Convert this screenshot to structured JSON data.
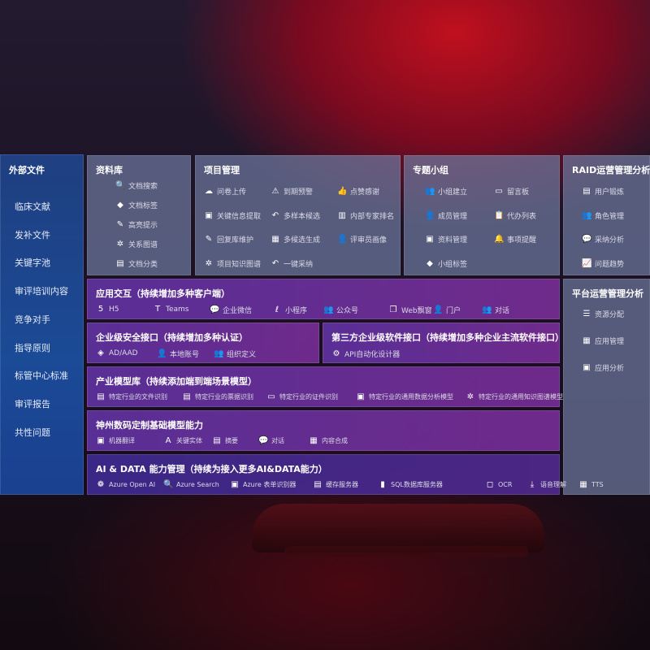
{
  "external": {
    "title": "外部文件",
    "items": [
      "临床文献",
      "发补文件",
      "关键字池",
      "审评培训内容",
      "竞争对手",
      "指导原则",
      "标管中心标准",
      "审评报告",
      "共性问题"
    ]
  },
  "library": {
    "title": "资料库",
    "items": [
      {
        "icon": "document-search-icon",
        "g": "🔍",
        "label": "文档搜索"
      },
      {
        "icon": "tag-icon",
        "g": "◆",
        "label": "文档标签"
      },
      {
        "icon": "highlight-pen-icon",
        "g": "✎",
        "label": "高亮提示"
      },
      {
        "icon": "graph-icon",
        "g": "✲",
        "label": "关系图谱"
      },
      {
        "icon": "document-category-icon",
        "g": "▤",
        "label": "文档分类"
      }
    ]
  },
  "project": {
    "title": "项目管理",
    "items": [
      {
        "icon": "cloud-upload-icon",
        "g": "☁",
        "label": "问卷上传"
      },
      {
        "icon": "alarm-icon",
        "g": "⚠",
        "label": "到期预警"
      },
      {
        "icon": "thumbs-up-icon",
        "g": "👍",
        "label": "点赞感谢"
      },
      {
        "icon": "window-icon",
        "g": "▣",
        "label": "关键信息提取"
      },
      {
        "icon": "reply-icon",
        "g": "↶",
        "label": "多样本候选"
      },
      {
        "icon": "ranking-icon",
        "g": "▥",
        "label": "内部专家排名"
      },
      {
        "icon": "edit-icon",
        "g": "✎",
        "label": "回复库维护"
      },
      {
        "icon": "puzzle-icon",
        "g": "▦",
        "label": "多候选生成"
      },
      {
        "icon": "user-icon",
        "g": "👤",
        "label": "评审员画像"
      },
      {
        "icon": "knowledge-graph-icon",
        "g": "✲",
        "label": "项目知识图谱"
      },
      {
        "icon": "reply-icon",
        "g": "↶",
        "label": "一键采纳"
      }
    ]
  },
  "group": {
    "title": "专题小组",
    "items": [
      {
        "icon": "group-icon",
        "g": "👥",
        "label": "小组建立"
      },
      {
        "icon": "bbs-icon",
        "g": "▭",
        "label": "留言板"
      },
      {
        "icon": "member-icon",
        "g": "👤",
        "label": "成员管理"
      },
      {
        "icon": "clipboard-icon",
        "g": "📋",
        "label": "代办列表"
      },
      {
        "icon": "folder-icon",
        "g": "▣",
        "label": "资料管理"
      },
      {
        "icon": "bell-icon",
        "g": "🔔",
        "label": "事项提醒"
      },
      {
        "icon": "tag-icon",
        "g": "◆",
        "label": "小组标签"
      }
    ]
  },
  "raid": {
    "title": "RAID运营管理分析",
    "items": [
      {
        "icon": "id-card-icon",
        "g": "▤",
        "label": "用户锻炼"
      },
      {
        "icon": "users-icon",
        "g": "👥",
        "label": "角色管理"
      },
      {
        "icon": "qa-icon",
        "g": "💬",
        "label": "采纳分析"
      },
      {
        "icon": "trend-chart-icon",
        "g": "📈",
        "label": "问题趋势"
      }
    ]
  },
  "platform": {
    "title": "平台运营管理分析",
    "items": [
      {
        "icon": "checklist-icon",
        "g": "☰",
        "label": "资源分配"
      },
      {
        "icon": "apps-icon",
        "g": "▦",
        "label": "应用管理"
      },
      {
        "icon": "analytics-icon",
        "g": "▣",
        "label": "应用分析"
      }
    ]
  },
  "layers": [
    {
      "key": "app",
      "title": "应用交互（持续增加多种客户端）",
      "items": [
        {
          "icon": "html5-icon",
          "g": "5",
          "label": "H5"
        },
        {
          "icon": "teams-icon",
          "g": "T",
          "label": "Teams"
        },
        {
          "icon": "wechat-work-icon",
          "g": "💬",
          "label": "企业微信"
        },
        {
          "icon": "mini-program-icon",
          "g": "ℓ",
          "label": "小程序"
        },
        {
          "icon": "official-account-icon",
          "g": "👥",
          "label": "公众号"
        },
        {
          "icon": "web-window-icon",
          "g": "❐",
          "label": "Web飘窗"
        },
        {
          "icon": "portal-icon",
          "g": "👤",
          "label": "门户"
        },
        {
          "icon": "chat-users-icon",
          "g": "👥",
          "label": "对话"
        }
      ]
    },
    {
      "key": "security",
      "title": "企业级安全接口（持续增加多种认证）",
      "items": [
        {
          "icon": "ad-icon",
          "g": "◈",
          "label": "AD/AAD"
        },
        {
          "icon": "local-account-icon",
          "g": "👤",
          "label": "本地账号"
        },
        {
          "icon": "organization-icon",
          "g": "👥",
          "label": "组织定义"
        }
      ]
    },
    {
      "key": "thirdparty",
      "title": "第三方企业级软件接口（持续增加多种企业主流软件接口）",
      "items": [
        {
          "icon": "api-gear-icon",
          "g": "⚙",
          "label": "API自动化设计器"
        }
      ]
    },
    {
      "key": "industry",
      "title": "产业模型库（持续添加端到端场景模型）",
      "items": [
        {
          "icon": "file-icon",
          "g": "▤",
          "label": "特定行业的文件识别"
        },
        {
          "icon": "receipt-icon",
          "g": "▤",
          "label": "特定行业的票据识别"
        },
        {
          "icon": "id-card-icon",
          "g": "▭",
          "label": "特定行业的证件识别"
        },
        {
          "icon": "data-analysis-icon",
          "g": "▣",
          "label": "特定行业的通用数据分析模型"
        },
        {
          "icon": "knowledge-graph-icon",
          "g": "✲",
          "label": "特定行业的通用知识图谱模型"
        }
      ]
    },
    {
      "key": "base",
      "title": "神州数码定制基础模型能力",
      "items": [
        {
          "icon": "translate-icon",
          "g": "▣",
          "label": "机器翻译"
        },
        {
          "icon": "entity-icon",
          "g": "A",
          "label": "关键实体"
        },
        {
          "icon": "summary-icon",
          "g": "▤",
          "label": "摘要"
        },
        {
          "icon": "chat-icon",
          "g": "💬",
          "label": "对话"
        },
        {
          "icon": "content-compose-icon",
          "g": "▦",
          "label": "内容合成"
        }
      ]
    },
    {
      "key": "ai",
      "title": "AI & DATA 能力管理（持续为接入更多AI&DATA能力）",
      "items": [
        {
          "icon": "openai-icon",
          "g": "❁",
          "label": "Azure Open AI"
        },
        {
          "icon": "azure-search-icon",
          "g": "🔍",
          "label": "Azure Search"
        },
        {
          "icon": "form-recognizer-icon",
          "g": "▣",
          "label": "Azure 表单识别器"
        },
        {
          "icon": "cache-server-icon",
          "g": "▤",
          "label": "缓存服务器"
        },
        {
          "icon": "sql-database-icon",
          "g": "▮",
          "label": "SQL数据库服务器"
        },
        {
          "icon": "ocr-icon",
          "g": "◻",
          "label": "OCR"
        },
        {
          "icon": "speech-icon",
          "g": "⤓",
          "label": "语音理解"
        },
        {
          "icon": "tts-icon",
          "g": "▦",
          "label": "TTS"
        }
      ]
    }
  ]
}
